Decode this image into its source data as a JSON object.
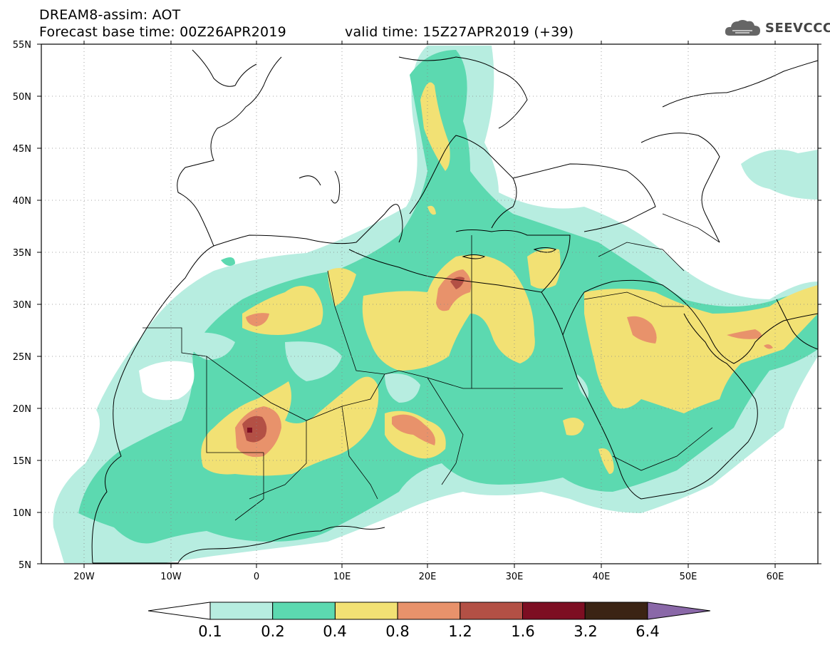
{
  "header": {
    "model_title": "DREAM8-assim: AOT",
    "base_time": "Forecast base time: 00Z26APR2019",
    "valid_time": "valid time: 15Z27APR2019 (+39)"
  },
  "logo": {
    "text": "SEEVCCC",
    "icon": "cloud-icon"
  },
  "map": {
    "region": "North Africa, Europe, Middle East",
    "lat_labels": [
      "55N",
      "50N",
      "45N",
      "40N",
      "35N",
      "30N",
      "25N",
      "20N",
      "15N",
      "10N",
      "5N"
    ],
    "lon_labels": [
      "20W",
      "10W",
      "0",
      "10E",
      "20E",
      "30E",
      "40E",
      "50E",
      "60E"
    ],
    "lat_range": [
      5,
      55
    ],
    "lon_range": [
      -25,
      65
    ],
    "grid": "dotted"
  },
  "colorbar": {
    "labels": [
      "0.1",
      "0.2",
      "0.4",
      "0.8",
      "1.2",
      "1.6",
      "3.2",
      "6.4"
    ],
    "colors": [
      "#ffffff",
      "#b7ede0",
      "#5cd9b0",
      "#f2e174",
      "#e8926b",
      "#b35045",
      "#7d0e22",
      "#3b2414",
      "#8a68a8"
    ]
  }
}
